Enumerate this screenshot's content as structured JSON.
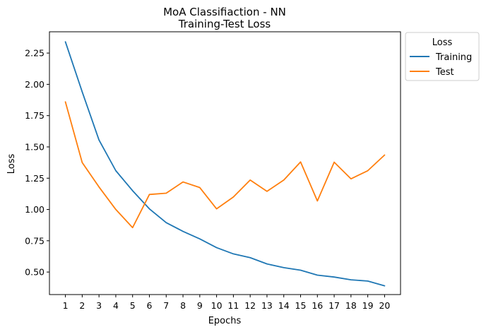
{
  "chart_data": {
    "type": "line",
    "title": "MoA Classifiaction - NN",
    "subtitle": "Training-Test Loss",
    "xlabel": "Epochs",
    "ylabel": "Loss",
    "x": [
      1,
      2,
      3,
      4,
      5,
      6,
      7,
      8,
      9,
      10,
      11,
      12,
      13,
      14,
      15,
      16,
      17,
      18,
      19,
      20
    ],
    "xlim": [
      0.05,
      20.95
    ],
    "ylim": [
      0.32,
      2.42
    ],
    "yticks": [
      0.5,
      0.75,
      1.0,
      1.25,
      1.5,
      1.75,
      2.0,
      2.25
    ],
    "ytick_labels": [
      "0.50",
      "0.75",
      "1.00",
      "1.25",
      "1.50",
      "1.75",
      "2.00",
      "2.25"
    ],
    "xtick_labels": [
      "1",
      "2",
      "3",
      "4",
      "5",
      "6",
      "7",
      "8",
      "9",
      "10",
      "11",
      "12",
      "13",
      "14",
      "15",
      "16",
      "17",
      "18",
      "19",
      "20"
    ],
    "grid": false,
    "legend": {
      "title": "Loss",
      "placement": "outside-top-right"
    },
    "series": [
      {
        "name": "Training",
        "color": "#1f77b4",
        "values": [
          2.34,
          1.94,
          1.555,
          1.31,
          1.15,
          1.005,
          0.895,
          0.825,
          0.765,
          0.695,
          0.645,
          0.615,
          0.565,
          0.535,
          0.515,
          0.475,
          0.46,
          0.438,
          0.428,
          0.39
        ]
      },
      {
        "name": "Test",
        "color": "#ff7f0e",
        "values": [
          1.86,
          1.375,
          1.18,
          1.0,
          0.855,
          1.12,
          1.13,
          1.22,
          1.175,
          1.005,
          1.1,
          1.235,
          1.145,
          1.235,
          1.38,
          1.068,
          1.378,
          1.245,
          1.31,
          1.435
        ]
      }
    ]
  }
}
